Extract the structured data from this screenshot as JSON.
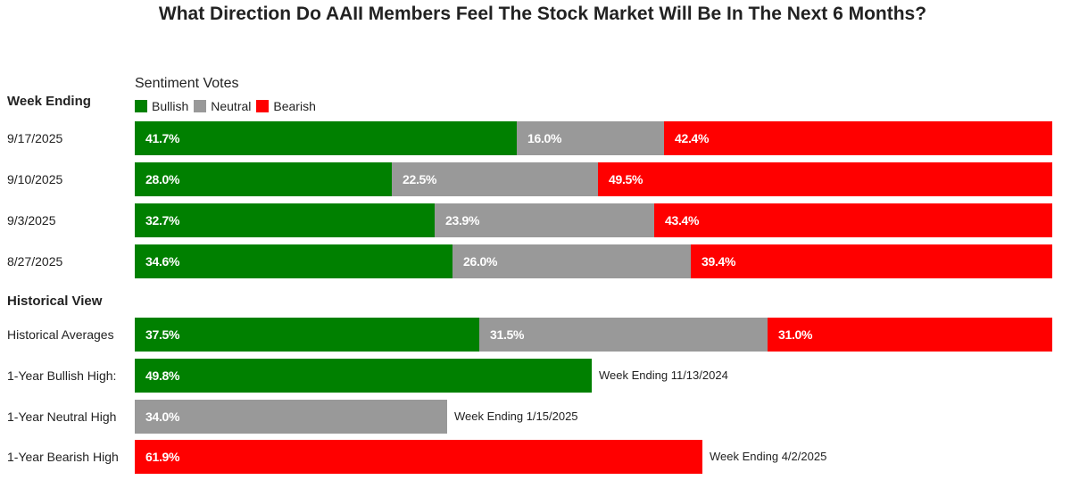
{
  "colors": {
    "bullish": "#008000",
    "neutral": "#999999",
    "bearish": "#ff0000"
  },
  "chart_data": {
    "type": "bar",
    "stacked": true,
    "orientation": "horizontal",
    "title": "What Direction Do AAII Members Feel The Stock Market Will Be In The Next 6 Months?",
    "legend_title": "Sentiment Votes",
    "legend": [
      "Bullish",
      "Neutral",
      "Bearish"
    ],
    "legend_position": "top-left",
    "grid": false,
    "xlim": [
      0,
      100
    ],
    "weekly_section_label": "Week Ending",
    "historical_section_label": "Historical View",
    "weekly": [
      {
        "label": "9/17/2025",
        "values": [
          41.7,
          16.0,
          42.4
        ],
        "value_labels": [
          "41.7%",
          "16.0%",
          "42.4%"
        ]
      },
      {
        "label": "9/10/2025",
        "values": [
          28.0,
          22.5,
          49.5
        ],
        "value_labels": [
          "28.0%",
          "22.5%",
          "49.5%"
        ]
      },
      {
        "label": "9/3/2025",
        "values": [
          32.7,
          23.9,
          43.4
        ],
        "value_labels": [
          "32.7%",
          "23.9%",
          "43.4%"
        ]
      },
      {
        "label": "8/27/2025",
        "values": [
          34.6,
          26.0,
          39.4
        ],
        "value_labels": [
          "34.6%",
          "26.0%",
          "39.4%"
        ]
      }
    ],
    "historical_averages": {
      "label": "Historical Averages",
      "values": [
        37.5,
        31.5,
        31.0
      ],
      "value_labels": [
        "37.5%",
        "31.5%",
        "31.0%"
      ]
    },
    "highs": [
      {
        "label": "1-Year Bullish High:",
        "series": "bullish",
        "value": 49.8,
        "value_label": "49.8%",
        "note": "Week Ending 11/13/2024"
      },
      {
        "label": "1-Year Neutral High",
        "series": "neutral",
        "value": 34.0,
        "value_label": "34.0%",
        "note": "Week Ending 1/15/2025"
      },
      {
        "label": "1-Year Bearish High",
        "series": "bearish",
        "value": 61.9,
        "value_label": "61.9%",
        "note": "Week Ending 4/2/2025"
      }
    ]
  }
}
